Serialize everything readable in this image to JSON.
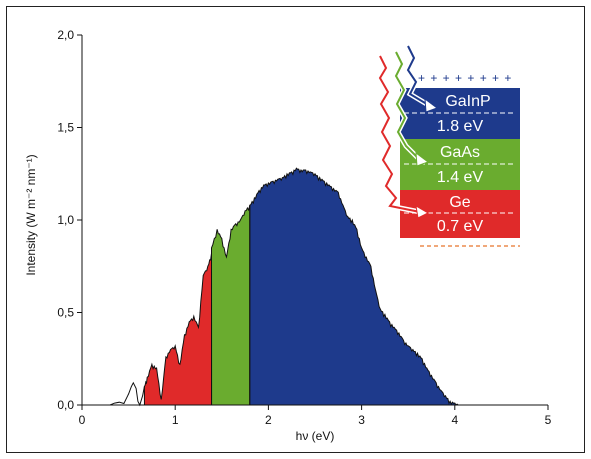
{
  "chart_data": {
    "type": "area",
    "xlabel": "hν (eV)",
    "ylabel": "Intensity (W m⁻² nm⁻¹)",
    "xlim": [
      0,
      5
    ],
    "ylim": [
      0,
      2.0
    ],
    "xticks": [
      "0",
      "1",
      "2",
      "3",
      "4",
      "5"
    ],
    "yticks": [
      "0,0",
      "0,5",
      "1,0",
      "1,5",
      "2,0"
    ],
    "grid": false,
    "series": [
      {
        "color": "#1e3a8c",
        "x_range": [
          1.8,
          4.05
        ],
        "x": [
          1.8,
          1.85,
          1.9,
          1.95,
          2.0,
          2.05,
          2.1,
          2.15,
          2.2,
          2.25,
          2.3,
          2.35,
          2.4,
          2.45,
          2.5,
          2.55,
          2.6,
          2.65,
          2.7,
          2.75,
          2.8,
          2.85,
          2.9,
          2.95,
          3.0,
          3.05,
          3.1,
          3.15,
          3.2,
          3.25,
          3.3,
          3.35,
          3.4,
          3.45,
          3.5,
          3.55,
          3.6,
          3.65,
          3.7,
          3.75,
          3.8,
          3.85,
          3.9,
          3.95,
          4.0,
          4.05
        ],
        "values": [
          1.08,
          1.12,
          1.16,
          1.19,
          1.2,
          1.21,
          1.22,
          1.23,
          1.25,
          1.26,
          1.28,
          1.27,
          1.27,
          1.26,
          1.25,
          1.23,
          1.21,
          1.19,
          1.17,
          1.15,
          1.08,
          1.02,
          1.0,
          0.95,
          0.85,
          0.8,
          0.75,
          0.62,
          0.52,
          0.49,
          0.45,
          0.42,
          0.39,
          0.35,
          0.32,
          0.3,
          0.28,
          0.25,
          0.2,
          0.16,
          0.12,
          0.08,
          0.05,
          0.02,
          0.01,
          0.0
        ]
      },
      {
        "color": "#6aac2f",
        "x_range": [
          1.39,
          1.8
        ],
        "x": [
          1.39,
          1.45,
          1.5,
          1.55,
          1.6,
          1.65,
          1.7,
          1.75,
          1.8
        ],
        "values": [
          0.85,
          0.95,
          0.9,
          0.8,
          0.95,
          0.98,
          1.0,
          1.05,
          1.08
        ]
      },
      {
        "color": "#e02a2a",
        "x_range": [
          0.67,
          1.39
        ],
        "x": [
          0.67,
          0.7,
          0.75,
          0.8,
          0.85,
          0.9,
          0.95,
          1.0,
          1.05,
          1.1,
          1.15,
          1.2,
          1.25,
          1.3,
          1.35,
          1.39
        ],
        "values": [
          0.1,
          0.15,
          0.22,
          0.2,
          0.03,
          0.26,
          0.3,
          0.32,
          0.22,
          0.38,
          0.45,
          0.48,
          0.42,
          0.7,
          0.75,
          0.82
        ]
      }
    ],
    "curve_low_energy": {
      "x": [
        0.3,
        0.35,
        0.4,
        0.45,
        0.5,
        0.53,
        0.55,
        0.58,
        0.6,
        0.62,
        0.65,
        0.67
      ],
      "values": [
        0.0,
        0.01,
        0.015,
        0.008,
        0.06,
        0.1,
        0.12,
        0.09,
        0.02,
        0.0,
        0.05,
        0.1
      ]
    },
    "annotations": {
      "plus_signs": "+ + + + + + + +",
      "layers": [
        {
          "name": "GaInP",
          "energy": "1.8 eV",
          "color": "#1e3a8c"
        },
        {
          "name": "GaAs",
          "energy": "1.4 eV",
          "color": "#6aac2f"
        },
        {
          "name": "Ge",
          "energy": "0.7 eV",
          "color": "#e02a2a"
        }
      ]
    }
  }
}
